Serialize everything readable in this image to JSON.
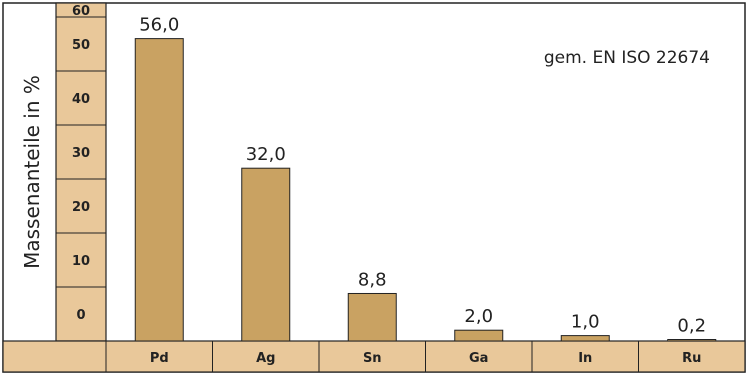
{
  "colors": {
    "bar": "#c9a262",
    "bar_stroke": "#222222",
    "panel_fill": "#e9c89a",
    "border": "#222222"
  },
  "chart_data": {
    "type": "bar",
    "title": "",
    "annotation": "gem. EN ISO 22674",
    "ylabel": "Massenanteile in %",
    "xlabel": "",
    "ylim": [
      0,
      60
    ],
    "yticks": [
      0,
      10,
      20,
      30,
      40,
      50,
      60
    ],
    "grid": false,
    "categories": [
      "Pd",
      "Ag",
      "Sn",
      "Ga",
      "In",
      "Ru"
    ],
    "values": [
      56.0,
      32.0,
      8.8,
      2.0,
      1.0,
      0.2
    ],
    "value_labels": [
      "56,0",
      "32,0",
      "8,8",
      "2,0",
      "1,0",
      "0,2"
    ]
  }
}
